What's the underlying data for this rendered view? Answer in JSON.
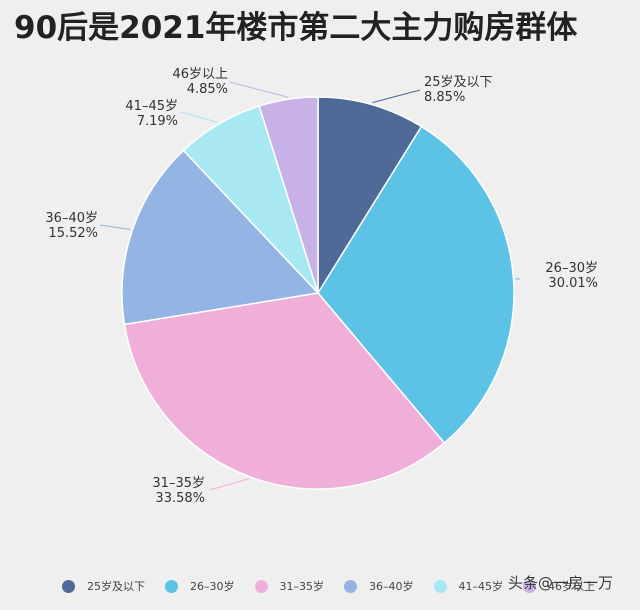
{
  "title": "90后是2021年楼市第二大主力购房群体",
  "watermark": "头条@一房一万",
  "chart_data": {
    "type": "pie",
    "title": "90后是2021年楼市第二大主力购房群体",
    "slices": [
      {
        "label": "25岁及以下",
        "value": 8.85,
        "value_label": "8.85%",
        "color": "#4f6a96"
      },
      {
        "label": "26–30岁",
        "value": 30.01,
        "value_label": "30.01%",
        "color": "#5cc2e6"
      },
      {
        "label": "31–35岁",
        "value": 33.58,
        "value_label": "33.58%",
        "color": "#efafd9"
      },
      {
        "label": "36–40岁",
        "value": 15.52,
        "value_label": "15.52%",
        "color": "#94b4e3"
      },
      {
        "label": "41–45岁",
        "value": 7.19,
        "value_label": "7.19%",
        "color": "#a8e8f2"
      },
      {
        "label": "46岁以上",
        "value": 4.85,
        "value_label": "4.85%",
        "color": "#c8b1e6"
      }
    ],
    "legend_position": "bottom"
  }
}
